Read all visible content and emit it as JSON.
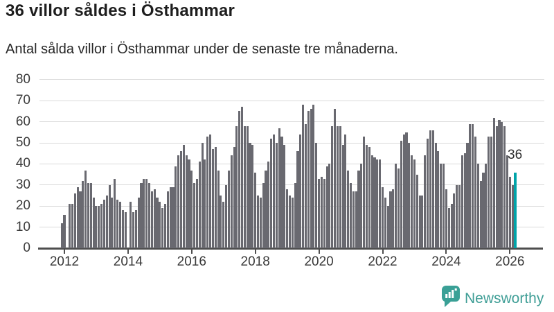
{
  "header": {
    "title": "36 villor såldes i Östhammar",
    "subtitle": "Antal sålda villor i Östhammar under de senaste tre månaderna."
  },
  "chart_data": {
    "type": "bar",
    "title": "36 villor såldes i Östhammar",
    "subtitle": "Antal sålda villor i Östhammar under de senaste tre månaderna.",
    "unit": "villor per 3-månadersperiod",
    "start_month": "2011-12",
    "end_month": "2026-03",
    "x_tick_labels": [
      "2012",
      "2014",
      "2016",
      "2018",
      "2020",
      "2022",
      "2024",
      "2026"
    ],
    "y_ticks": [
      0,
      10,
      20,
      30,
      40,
      50,
      60,
      70,
      80
    ],
    "ylim": [
      0,
      80
    ],
    "grid": true,
    "legend": false,
    "bar_color": "#696970",
    "highlight_color": "#00a4a9",
    "highlight_value": 36,
    "values": [
      12,
      16,
      null,
      21,
      21,
      26,
      29,
      27,
      32,
      37,
      31,
      31,
      24,
      20,
      20,
      21,
      23,
      25,
      30,
      24,
      33,
      23,
      22,
      18,
      17,
      null,
      22,
      17,
      18,
      24,
      31,
      33,
      33,
      31,
      27,
      28,
      24,
      22,
      19,
      21,
      27,
      29,
      29,
      39,
      44,
      46,
      49,
      44,
      42,
      37,
      31,
      33,
      41,
      50,
      42,
      53,
      54,
      47,
      48,
      37,
      25,
      22,
      30,
      37,
      44,
      48,
      58,
      65,
      67,
      58,
      58,
      50,
      49,
      36,
      25,
      24,
      31,
      37,
      41,
      52,
      54,
      50,
      57,
      53,
      49,
      28,
      25,
      24,
      31,
      46,
      54,
      68,
      59,
      65,
      66,
      68,
      50,
      33,
      34,
      33,
      39,
      40,
      58,
      66,
      58,
      58,
      49,
      54,
      37,
      31,
      27,
      27,
      37,
      40,
      53,
      49,
      48,
      44,
      43,
      42,
      42,
      29,
      24,
      20,
      27,
      28,
      40,
      38,
      51,
      54,
      55,
      50,
      44,
      42,
      35,
      25,
      25,
      44,
      52,
      56,
      56,
      50,
      46,
      40,
      40,
      28,
      19,
      21,
      26,
      30,
      30,
      44,
      45,
      50,
      59,
      59,
      53,
      40,
      32,
      36,
      40,
      53,
      53,
      62,
      58,
      61,
      60,
      58,
      44,
      34,
      30,
      36
    ]
  },
  "annotation": {
    "label": "36"
  },
  "branding": {
    "logo_text": "Newsworthy",
    "logo_color": "#3f9e96",
    "logo_icon": "newsworthy-speech-bubble-bar-chart"
  }
}
